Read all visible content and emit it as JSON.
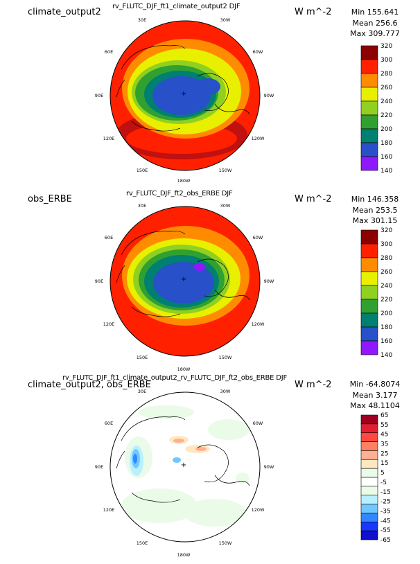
{
  "panels": [
    {
      "title": "rv_FLUTC_DJF_ft1_climate_output2  DJF",
      "left_label": "climate_output2",
      "units": "W m^-2",
      "stats": {
        "min": "Min 155.641",
        "mean": "Mean 256.6",
        "max": "Max 309.777"
      },
      "levels": [
        "320",
        "300",
        "280",
        "260",
        "240",
        "220",
        "200",
        "180",
        "160",
        "140"
      ],
      "colors": [
        "#8b0000",
        "#ff2000",
        "#ff8c00",
        "#e8f000",
        "#90d020",
        "#30a030",
        "#008070",
        "#2850c8",
        "#9018ff"
      ]
    },
    {
      "title": "rv_FLUTC_DJF_ft2_obs_ERBE  DJF",
      "left_label": "obs_ERBE",
      "units": "W m^-2",
      "stats": {
        "min": "Min 146.358",
        "mean": "Mean 253.5",
        "max": "Max 301.15"
      },
      "levels": [
        "320",
        "300",
        "280",
        "260",
        "240",
        "220",
        "200",
        "180",
        "160",
        "140"
      ],
      "colors": [
        "#8b0000",
        "#ff2000",
        "#ff8c00",
        "#e8f000",
        "#90d020",
        "#30a030",
        "#008070",
        "#2850c8",
        "#9018ff"
      ]
    },
    {
      "title": "rv_FLUTC_DJF_ft1_climate_output2_rv_FLUTC_DJF_ft2_obs_ERBE  DJF",
      "left_label": "climate_output2, obs_ERBE",
      "units": "W m^-2",
      "stats": {
        "min": "Min -64.8074",
        "mean": "Mean 3.177",
        "max": "Max 48.1104"
      },
      "levels": [
        "65",
        "55",
        "45",
        "35",
        "25",
        "15",
        "5",
        "-5",
        "-15",
        "-25",
        "-35",
        "-45",
        "-55",
        "-65"
      ],
      "colors": [
        "#a00020",
        "#e02030",
        "#ff4840",
        "#ff8060",
        "#ffb090",
        "#ffe8c0",
        "#eafbe8",
        "#ffffff",
        "#eafbe8",
        "#b8f0ff",
        "#70c8ff",
        "#3088ff",
        "#1838ff",
        "#1010d0"
      ]
    }
  ],
  "lon_labels": {
    "top_left": "30E",
    "top_right": "30W",
    "upper_left": "60E",
    "upper_right": "60W",
    "mid_left": "90E",
    "mid_right": "90W",
    "lower_left": "120E",
    "lower_right": "120W",
    "bottom_left": "150E",
    "bottom_right": "150W",
    "bottom": "180W"
  }
}
